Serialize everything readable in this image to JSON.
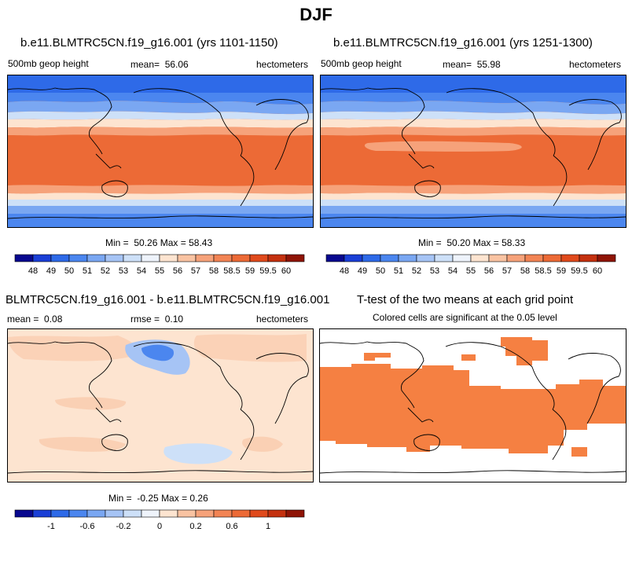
{
  "title": "DJF",
  "colors": {
    "scale": [
      "#08088f",
      "#1a3fd6",
      "#2e6ae8",
      "#4b86ef",
      "#7aa7f2",
      "#a6c4f5",
      "#cde0f8",
      "#eef3fb",
      "#fde4d0",
      "#f9c3a2",
      "#f6a27a",
      "#f28454",
      "#ec6a36",
      "#e04a1c",
      "#c4310f",
      "#8f1406"
    ],
    "diff_pos": "#fbe3d1",
    "diff_blue": "#c9dcf6",
    "ttest_fill": "#f58042",
    "coast": "#000000"
  },
  "panels": {
    "p1": {
      "title": "b.e11.BLMTRC5CN.f19_g16.001 (yrs 1101-1150)",
      "left_label": "500mb geop height",
      "mean_label": "mean=",
      "mean_value": "56.06",
      "units": "hectometers",
      "min_label": "Min =",
      "min_value": "50.26",
      "max_label": "Max =",
      "max_value": "58.43"
    },
    "p2": {
      "title": "b.e11.BLMTRC5CN.f19_g16.001 (yrs 1251-1300)",
      "left_label": "500mb geop height",
      "mean_label": "mean=",
      "mean_value": "55.98",
      "units": "hectometers",
      "min_label": "Min =",
      "min_value": "50.20",
      "max_label": "Max =",
      "max_value": "58.33"
    },
    "p3": {
      "title": "BLMTRC5CN.f19_g16.001 - b.e11.BLMTRC5CN.f19_g16.001",
      "mean_label": "mean =",
      "mean_value": "0.08",
      "rmse_label": "rmse =",
      "rmse_value": "0.10",
      "units": "hectometers",
      "min_label": "Min =",
      "min_value": "-0.25",
      "max_label": "Max =",
      "max_value": "0.26"
    },
    "p4": {
      "title": "T-test of the two means at each grid point",
      "subtitle": "Colored cells are significant at the 0.05 level"
    }
  },
  "chart_data": [
    {
      "type": "heatmap",
      "title": "b.e11.BLMTRC5CN.f19_g16.001 (yrs 1101-1150)",
      "variable": "500mb geop height",
      "units": "hectometers",
      "mean": 56.06,
      "min": 50.26,
      "max": 58.43,
      "colorbar_levels": [
        "48",
        "49",
        "50",
        "51",
        "52",
        "53",
        "54",
        "55",
        "56",
        "57",
        "58",
        "58.5",
        "59",
        "59.5",
        "60"
      ]
    },
    {
      "type": "heatmap",
      "title": "b.e11.BLMTRC5CN.f19_g16.001 (yrs 1251-1300)",
      "variable": "500mb geop height",
      "units": "hectometers",
      "mean": 55.98,
      "min": 50.2,
      "max": 58.33,
      "colorbar_levels": [
        "48",
        "49",
        "50",
        "51",
        "52",
        "53",
        "54",
        "55",
        "56",
        "57",
        "58",
        "58.5",
        "59",
        "59.5",
        "60"
      ]
    },
    {
      "type": "heatmap",
      "title": "BLMTRC5CN.f19_g16.001 - b.e11.BLMTRC5CN.f19_g16.001",
      "units": "hectometers",
      "mean": 0.08,
      "rmse": 0.1,
      "min": -0.25,
      "max": 0.26,
      "colorbar_levels": [
        "-1",
        "-0.6",
        "-0.2",
        "0",
        "0.2",
        "0.6",
        "1"
      ]
    },
    {
      "type": "heatmap",
      "title": "T-test of the two means at each grid point",
      "subtitle": "Colored cells are significant at the 0.05 level",
      "significance_level": 0.05
    }
  ]
}
